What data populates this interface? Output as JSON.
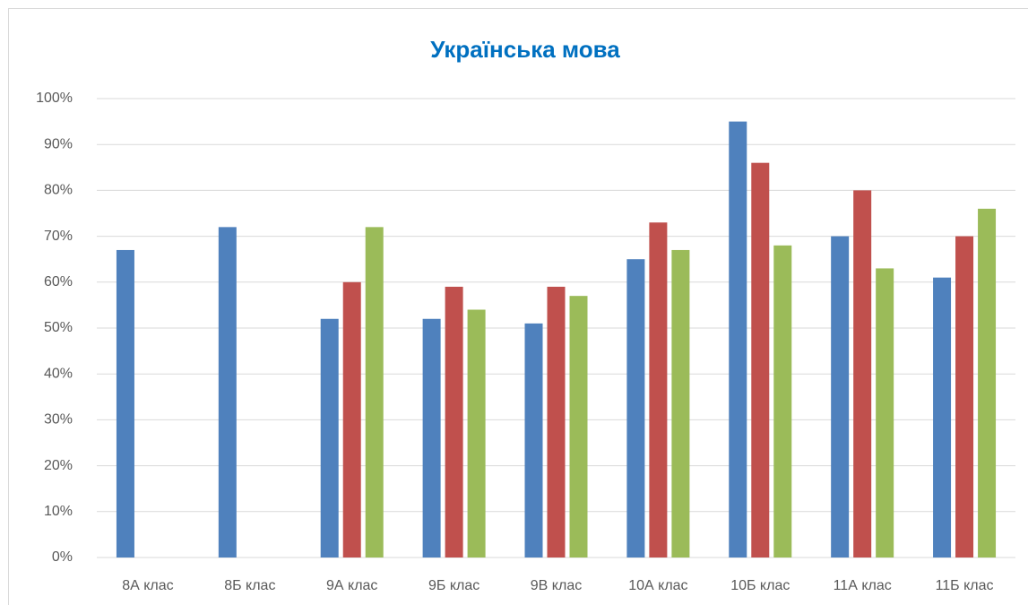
{
  "chart_data": {
    "type": "bar",
    "title": "Українська мова",
    "categories": [
      "8А клас",
      "8Б клас",
      "9А клас",
      "9Б клас",
      "9В клас",
      "10А клас",
      "10Б клас",
      "11А клас",
      "11Б клас"
    ],
    "series": [
      {
        "color": "#4f81bd",
        "values": [
          67,
          72,
          52,
          52,
          51,
          65,
          95,
          70,
          61
        ]
      },
      {
        "color": "#c0504d",
        "values": [
          null,
          null,
          60,
          59,
          59,
          73,
          86,
          80,
          70
        ]
      },
      {
        "color": "#9bbb59",
        "values": [
          null,
          null,
          72,
          54,
          57,
          67,
          68,
          63,
          76
        ]
      }
    ],
    "ylim": [
      0,
      100
    ],
    "yticks": [
      {
        "value": 0,
        "label": "0%"
      },
      {
        "value": 10,
        "label": "10%"
      },
      {
        "value": 20,
        "label": "20%"
      },
      {
        "value": 30,
        "label": "30%"
      },
      {
        "value": 40,
        "label": "40%"
      },
      {
        "value": 50,
        "label": "50%"
      },
      {
        "value": 60,
        "label": "60%"
      },
      {
        "value": 70,
        "label": "70%"
      },
      {
        "value": 80,
        "label": "80%"
      },
      {
        "value": 90,
        "label": "90%"
      },
      {
        "value": 100,
        "label": "100%"
      }
    ],
    "grid": true
  }
}
